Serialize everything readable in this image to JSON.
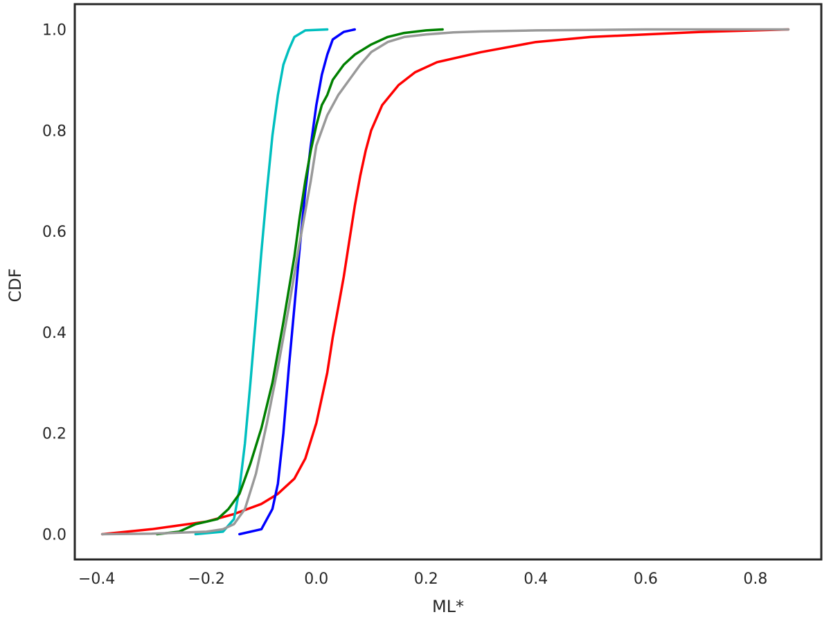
{
  "chart_data": {
    "type": "line",
    "title": "",
    "xlabel": "ML*",
    "ylabel": "CDF",
    "xlim": [
      -0.44,
      0.92
    ],
    "ylim": [
      -0.05,
      1.05
    ],
    "xticks": [
      -0.4,
      -0.2,
      0.0,
      0.2,
      0.4,
      0.6,
      0.8
    ],
    "xtick_labels": [
      "−0.4",
      "−0.2",
      "0.0",
      "0.2",
      "0.4",
      "0.6",
      "0.8"
    ],
    "yticks": [
      0.0,
      0.2,
      0.4,
      0.6,
      0.8,
      1.0
    ],
    "ytick_labels": [
      "0.0",
      "0.2",
      "0.4",
      "0.6",
      "0.8",
      "1.0"
    ],
    "grid": false,
    "legend": "none",
    "series": [
      {
        "color": "#ff0000",
        "x": [
          -0.39,
          -0.3,
          -0.2,
          -0.15,
          -0.1,
          -0.07,
          -0.04,
          -0.02,
          0.0,
          0.02,
          0.03,
          0.04,
          0.05,
          0.06,
          0.07,
          0.08,
          0.09,
          0.1,
          0.12,
          0.15,
          0.18,
          0.22,
          0.3,
          0.4,
          0.5,
          0.6,
          0.7,
          0.86
        ],
        "y": [
          0.0,
          0.01,
          0.025,
          0.04,
          0.06,
          0.08,
          0.11,
          0.15,
          0.22,
          0.32,
          0.39,
          0.45,
          0.51,
          0.58,
          0.65,
          0.71,
          0.76,
          0.8,
          0.85,
          0.89,
          0.915,
          0.935,
          0.955,
          0.975,
          0.985,
          0.99,
          0.995,
          1.0
        ]
      },
      {
        "color": "#0000ff",
        "x": [
          -0.14,
          -0.1,
          -0.08,
          -0.07,
          -0.06,
          -0.05,
          -0.04,
          -0.03,
          -0.02,
          -0.01,
          0.0,
          0.01,
          0.02,
          0.03,
          0.05,
          0.07
        ],
        "y": [
          0.0,
          0.01,
          0.05,
          0.1,
          0.2,
          0.33,
          0.45,
          0.57,
          0.68,
          0.77,
          0.85,
          0.91,
          0.95,
          0.98,
          0.995,
          1.0
        ]
      },
      {
        "color": "#00bfbf",
        "x": [
          -0.22,
          -0.17,
          -0.15,
          -0.14,
          -0.13,
          -0.12,
          -0.11,
          -0.1,
          -0.09,
          -0.08,
          -0.07,
          -0.06,
          -0.05,
          -0.04,
          -0.02,
          0.02
        ],
        "y": [
          0.0,
          0.005,
          0.03,
          0.09,
          0.18,
          0.3,
          0.43,
          0.56,
          0.68,
          0.79,
          0.87,
          0.93,
          0.96,
          0.985,
          0.998,
          1.0
        ]
      },
      {
        "color": "#008000",
        "x": [
          -0.29,
          -0.25,
          -0.22,
          -0.18,
          -0.16,
          -0.14,
          -0.12,
          -0.1,
          -0.08,
          -0.06,
          -0.04,
          -0.03,
          -0.02,
          -0.01,
          0.0,
          0.01,
          0.02,
          0.03,
          0.05,
          0.07,
          0.1,
          0.13,
          0.16,
          0.2,
          0.23
        ],
        "y": [
          0.0,
          0.005,
          0.02,
          0.03,
          0.05,
          0.08,
          0.14,
          0.21,
          0.3,
          0.42,
          0.55,
          0.63,
          0.7,
          0.76,
          0.81,
          0.85,
          0.87,
          0.9,
          0.93,
          0.95,
          0.97,
          0.985,
          0.993,
          0.998,
          1.0
        ]
      },
      {
        "color": "#999999",
        "x": [
          -0.39,
          -0.3,
          -0.2,
          -0.17,
          -0.15,
          -0.13,
          -0.11,
          -0.09,
          -0.07,
          -0.05,
          -0.03,
          -0.01,
          0.0,
          0.02,
          0.04,
          0.06,
          0.08,
          0.1,
          0.13,
          0.16,
          0.2,
          0.25,
          0.3,
          0.4,
          0.5,
          0.6,
          0.86
        ],
        "y": [
          0.0,
          0.001,
          0.005,
          0.01,
          0.02,
          0.05,
          0.12,
          0.22,
          0.33,
          0.45,
          0.58,
          0.7,
          0.77,
          0.83,
          0.87,
          0.9,
          0.93,
          0.955,
          0.975,
          0.985,
          0.99,
          0.994,
          0.996,
          0.998,
          0.999,
          1.0,
          1.0
        ]
      }
    ]
  }
}
